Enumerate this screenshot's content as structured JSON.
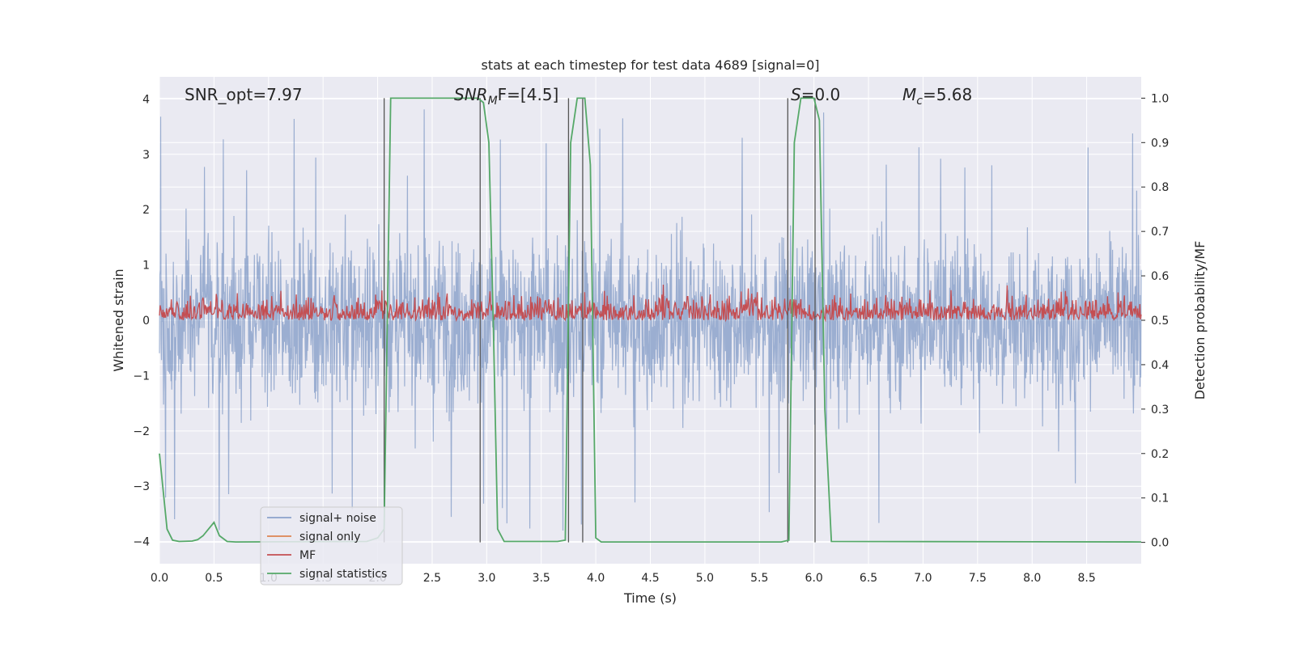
{
  "chart_data": {
    "type": "line",
    "title": "stats at each timestep for test data 4689 [signal=0]",
    "xlabel": "Time (s)",
    "ylabel": "Whitened strain",
    "ylabel_right": "Detection probability/MF",
    "xlim": [
      0,
      9.0
    ],
    "ylim": [
      -4.4,
      4.4
    ],
    "ylim_right": [
      -0.048,
      1.048
    ],
    "x_ticks": [
      "0.0",
      "0.5",
      "1.0",
      "1.5",
      "2.0",
      "2.5",
      "3.0",
      "3.5",
      "4.0",
      "4.5",
      "5.0",
      "5.5",
      "6.0",
      "6.5",
      "7.0",
      "7.5",
      "8.0",
      "8.5"
    ],
    "y_ticks": [
      "4",
      "3",
      "2",
      "1",
      "0",
      "−1",
      "−2",
      "−3",
      "−4"
    ],
    "y_ticks_right": [
      "1.0",
      "0.9",
      "0.8",
      "0.7",
      "0.6",
      "0.5",
      "0.4",
      "0.3",
      "0.2",
      "0.1",
      "0.0"
    ],
    "grid": true,
    "legend_position": "lower-left",
    "annotations": {
      "snr_opt": "SNR_opt=7.97",
      "snr_mf_base": "SNR",
      "snr_mf_sub": "M",
      "snr_mf_rest": "F=[4.5]",
      "s_label": "S",
      "s_value": "=0.0",
      "mc_base": "M",
      "mc_sub": "c",
      "mc_value": "=5.68"
    },
    "colors": {
      "background": "#eaeaf2",
      "grid": "#ffffff",
      "signal_noise": "#4c72b0",
      "signal_only": "#dd8452",
      "mf": "#c44e52",
      "signal_statistics": "#55a868",
      "vlines": "#555555"
    },
    "series": [
      {
        "name": "signal+ noise",
        "description_kind": "noise",
        "amplitude_range": [
          -3.8,
          4.0
        ]
      },
      {
        "name": "signal only",
        "values": []
      },
      {
        "name": "MF",
        "description_kind": "noise",
        "baseline": 0.5,
        "amplitude_range": [
          0.5,
          0.63
        ]
      },
      {
        "name": "signal statistics",
        "x": [
          0.0,
          0.07,
          0.12,
          0.18,
          0.3,
          0.35,
          0.4,
          0.45,
          0.5,
          0.55,
          0.62,
          0.7,
          1.9,
          2.0,
          2.06,
          2.12,
          2.92,
          2.97,
          3.02,
          3.06,
          3.1,
          3.16,
          3.65,
          3.72,
          3.77,
          3.83,
          3.9,
          3.95,
          4.0,
          4.05,
          5.7,
          5.77,
          5.82,
          5.88,
          6.0,
          6.05,
          6.1,
          6.16,
          9.0
        ],
        "values": [
          0.2,
          0.03,
          0.005,
          0.002,
          0.003,
          0.006,
          0.015,
          0.03,
          0.045,
          0.015,
          0.002,
          0.001,
          0.002,
          0.01,
          0.03,
          1.0,
          1.0,
          0.99,
          0.9,
          0.5,
          0.03,
          0.002,
          0.002,
          0.005,
          0.9,
          1.0,
          1.0,
          0.85,
          0.01,
          0.001,
          0.001,
          0.005,
          0.9,
          1.0,
          1.0,
          0.95,
          0.3,
          0.002,
          0.001
        ]
      }
    ],
    "vertical_lines_x": [
      2.06,
      2.94,
      3.75,
      3.88,
      5.76,
      6.01
    ]
  }
}
